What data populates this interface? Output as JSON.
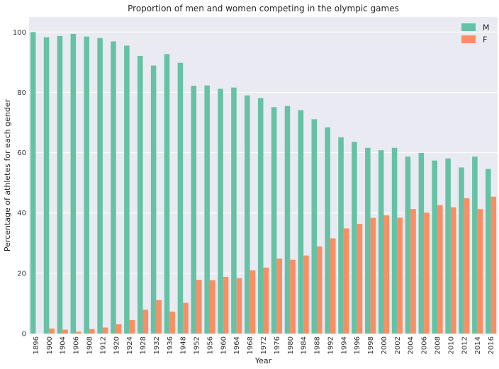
{
  "chart_data": {
    "type": "bar",
    "title": "Proportion of men and women competing in the olympic games",
    "xlabel": "Year",
    "ylabel": "Percentage of athletes for each gender",
    "ylim": [
      0,
      105
    ],
    "yticks": [
      0,
      20,
      40,
      60,
      80,
      100
    ],
    "grid": true,
    "legend_position": "top-right",
    "categories": [
      "1896",
      "1900",
      "1904",
      "1906",
      "1908",
      "1912",
      "1920",
      "1924",
      "1928",
      "1932",
      "1936",
      "1948",
      "1952",
      "1956",
      "1960",
      "1964",
      "1968",
      "1972",
      "1976",
      "1980",
      "1984",
      "1988",
      "1992",
      "1994",
      "1996",
      "1998",
      "2000",
      "2002",
      "2004",
      "2006",
      "2008",
      "2010",
      "2012",
      "2014",
      "2016"
    ],
    "series": [
      {
        "name": "M",
        "color": "#66c2a5",
        "values": [
          100,
          98.3,
          98.7,
          99.4,
          98.5,
          98.0,
          96.9,
          95.5,
          92.1,
          88.9,
          92.7,
          89.8,
          82.2,
          82.3,
          81.2,
          81.6,
          79.0,
          78.1,
          75.1,
          75.5,
          74.1,
          71.1,
          68.4,
          65.1,
          63.6,
          61.6,
          60.8,
          61.6,
          58.7,
          59.9,
          57.4,
          58.1,
          55.1,
          58.7,
          54.6
        ]
      },
      {
        "name": "F",
        "color": "#fc8d62",
        "values": [
          0,
          1.7,
          1.3,
          0.6,
          1.5,
          2.0,
          3.1,
          4.5,
          7.9,
          11.1,
          7.3,
          10.2,
          17.8,
          17.7,
          18.8,
          18.4,
          21.0,
          21.9,
          24.9,
          24.5,
          25.9,
          28.9,
          31.6,
          34.9,
          36.4,
          38.4,
          39.2,
          38.4,
          41.3,
          40.1,
          42.6,
          41.9,
          44.9,
          41.3,
          45.4
        ]
      }
    ]
  }
}
